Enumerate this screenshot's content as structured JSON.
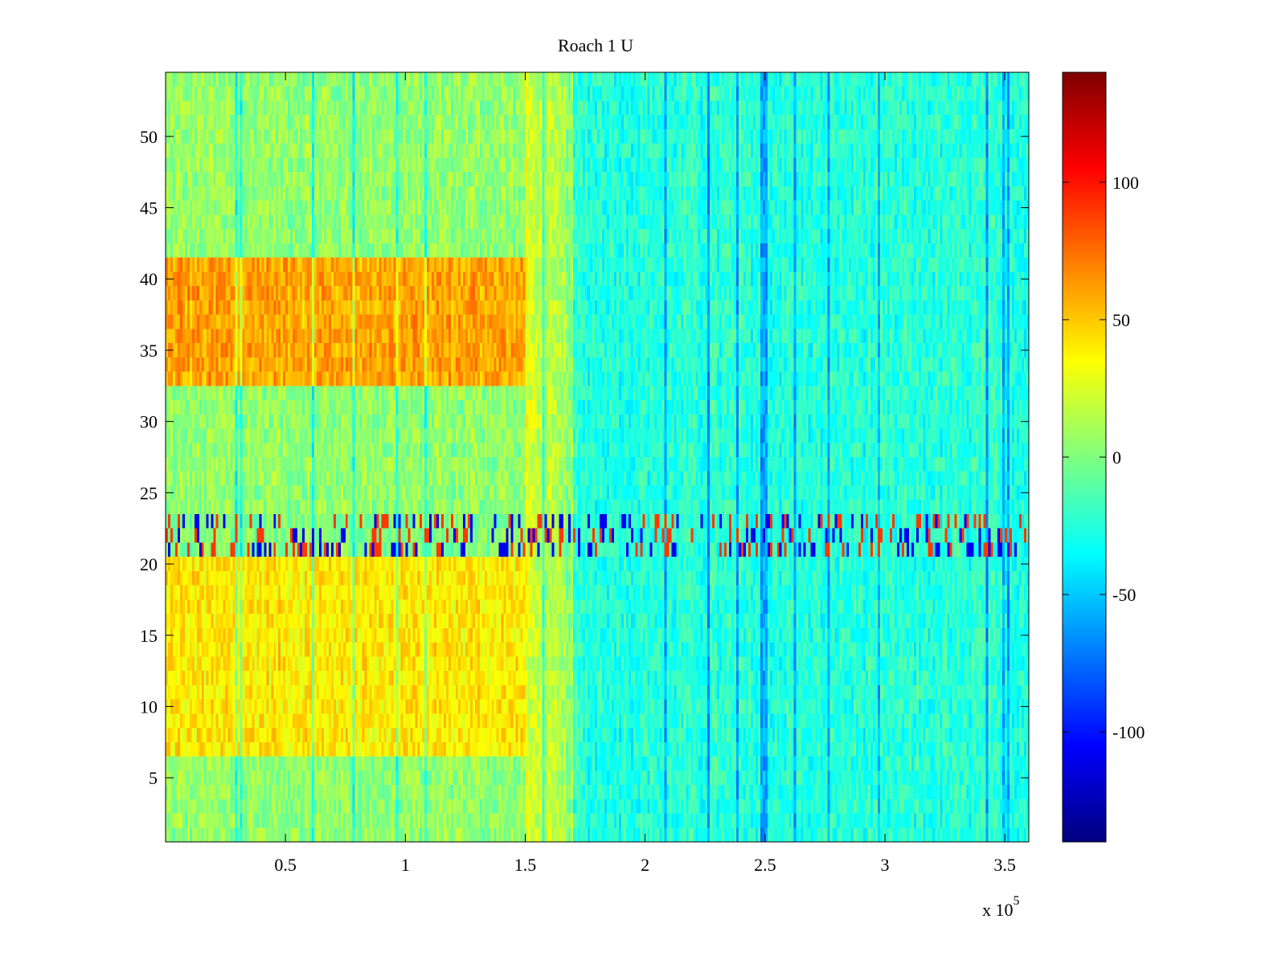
{
  "chart_data": {
    "type": "heatmap",
    "title": "Roach 1 U",
    "xlabel": "",
    "ylabel": "",
    "x_multiplier_label": "x 10",
    "x_multiplier_exponent": "5",
    "xlim": [
      0,
      3.6
    ],
    "ylim": [
      0.5,
      54.5
    ],
    "xticks": [
      0.5,
      1,
      1.5,
      2,
      2.5,
      3,
      3.5
    ],
    "xtick_labels": [
      "0.5",
      "1",
      "1.5",
      "2",
      "2.5",
      "3",
      "3.5"
    ],
    "yticks": [
      5,
      10,
      15,
      20,
      25,
      30,
      35,
      40,
      45,
      50
    ],
    "ytick_labels": [
      "5",
      "10",
      "15",
      "20",
      "25",
      "30",
      "35",
      "40",
      "45",
      "50"
    ],
    "colormap": "jet",
    "clim": [
      -140,
      140
    ],
    "colorbar_ticks": [
      -100,
      -50,
      0,
      50,
      100
    ],
    "colorbar_labels": [
      "-100",
      "-50",
      "0",
      "50",
      "100"
    ],
    "rows": 54,
    "grid": false,
    "regions": [
      {
        "description": "warm band",
        "x_range": [
          0,
          1.5
        ],
        "y_range": [
          7,
          20
        ],
        "approx_value": 40
      },
      {
        "description": "hot band",
        "x_range": [
          0,
          1.5
        ],
        "y_range": [
          33,
          41
        ],
        "approx_value": 60
      },
      {
        "description": "noisy rows",
        "x_range": [
          0,
          3.6
        ],
        "y_range": [
          21,
          23
        ],
        "approx_value": 0
      },
      {
        "description": "cool region",
        "x_range": [
          1.7,
          3.6
        ],
        "y_range": [
          1,
          54
        ],
        "approx_value": -25
      }
    ]
  }
}
